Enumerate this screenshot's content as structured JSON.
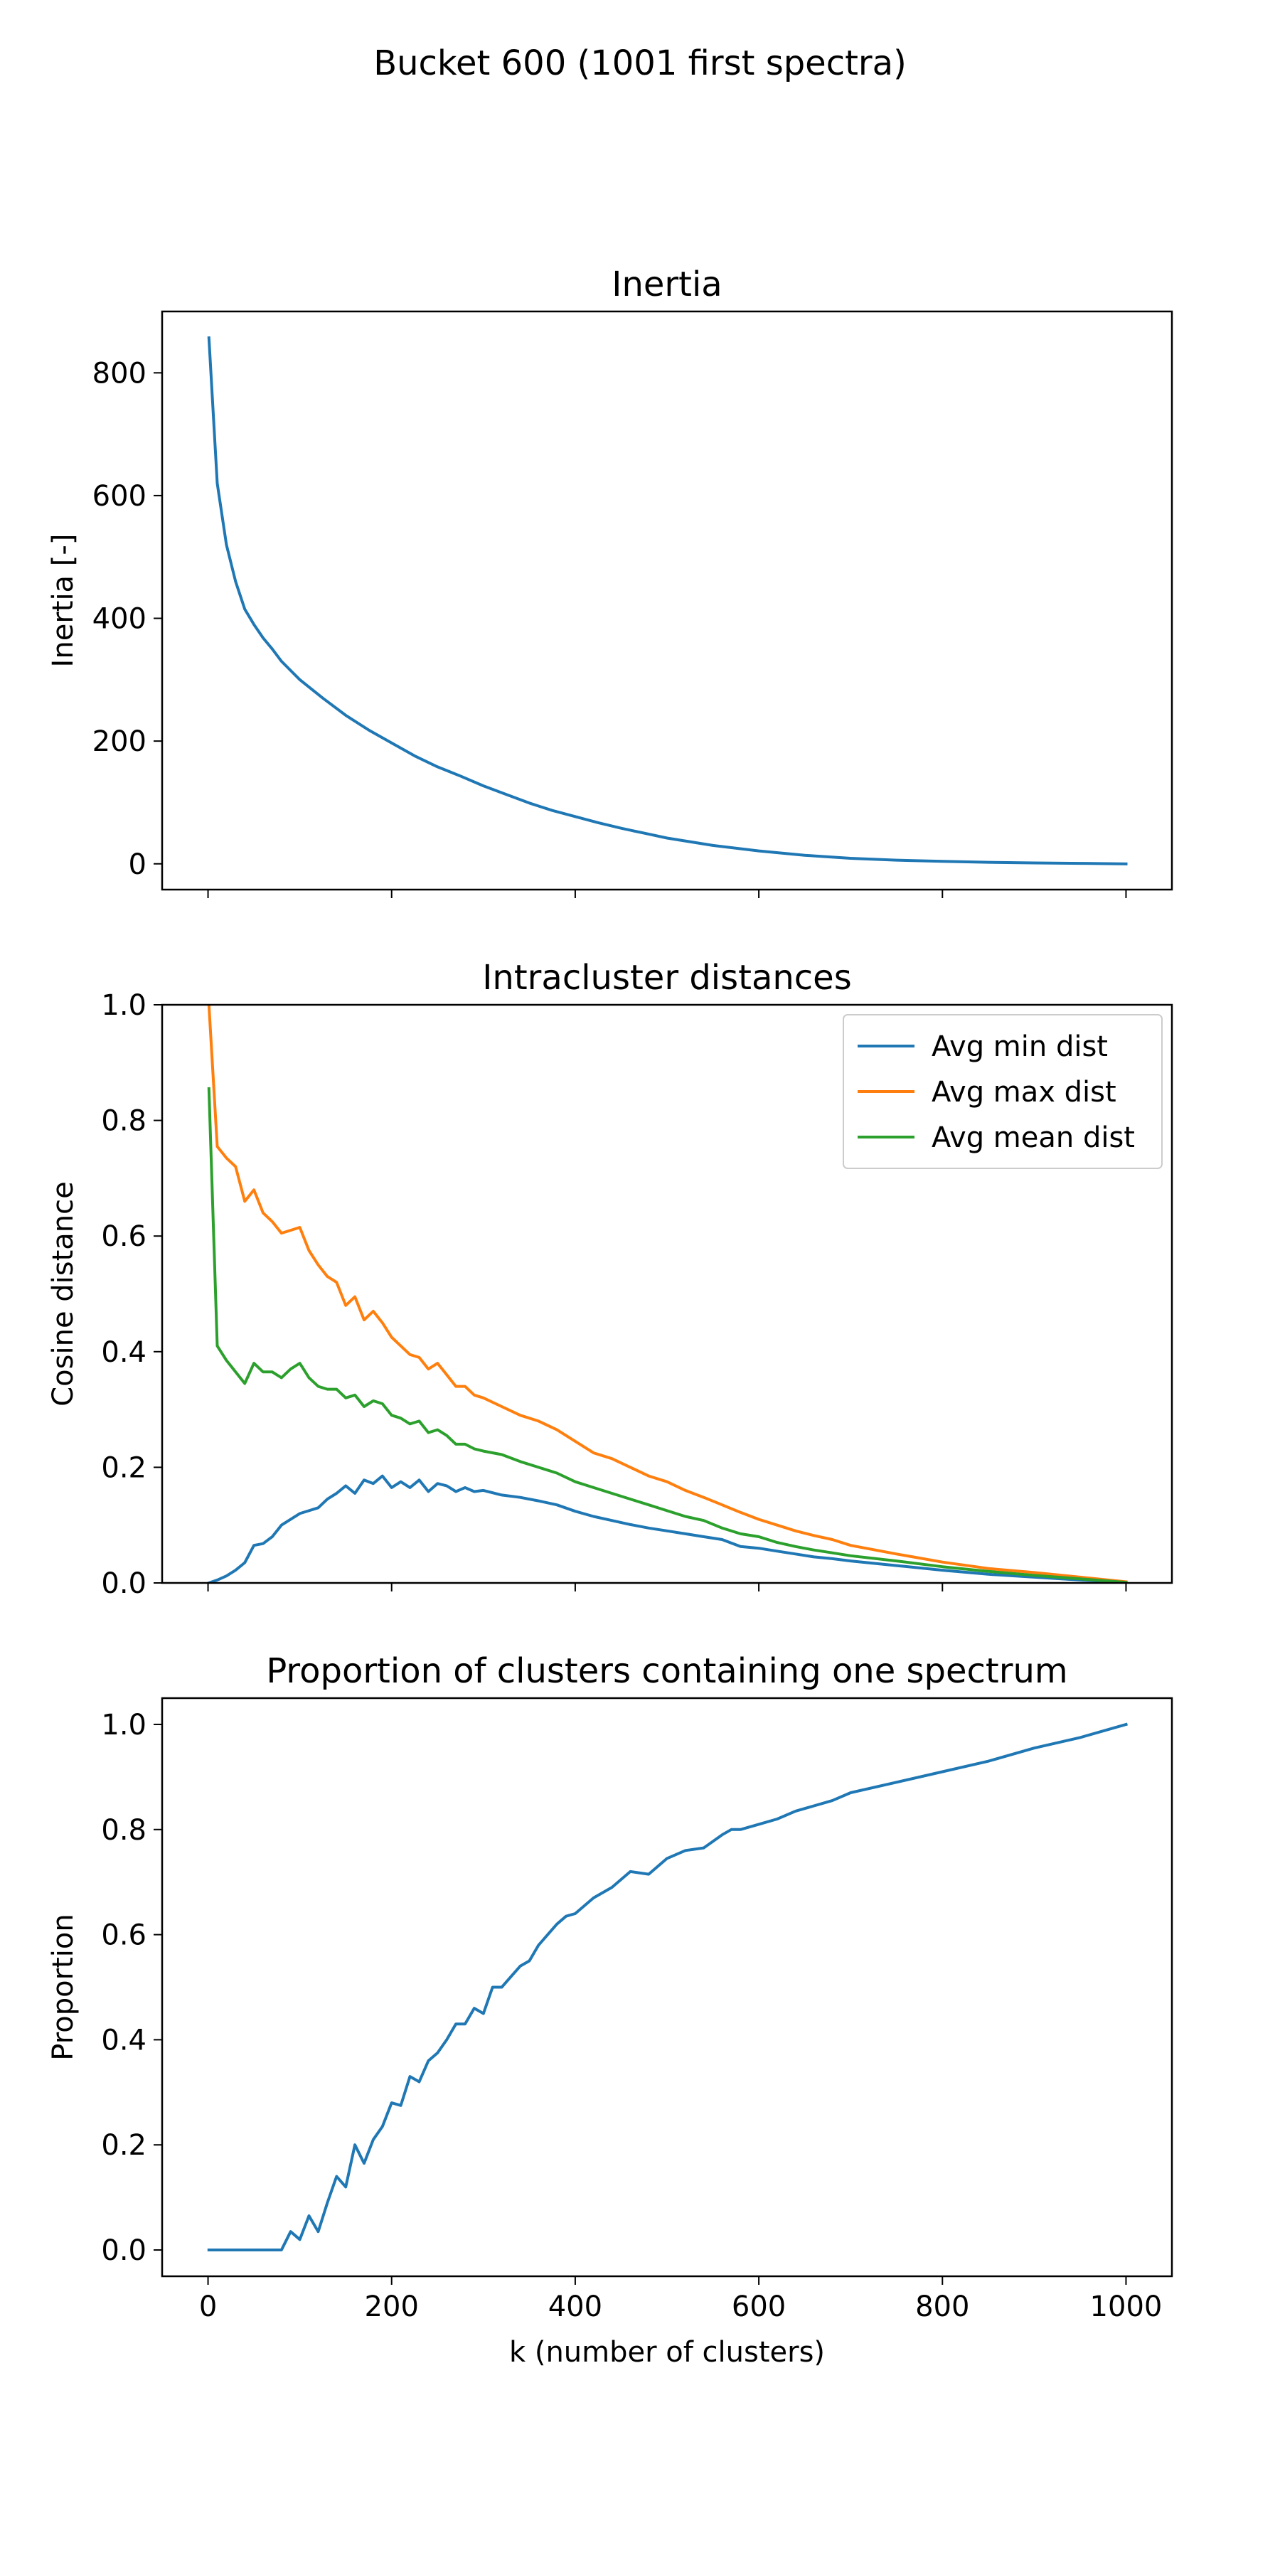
{
  "figure": {
    "suptitle": "Bucket 600 (1001 first spectra)"
  },
  "colors": {
    "series1": "#1f77b4",
    "series2": "#ff7f0e",
    "series3": "#2ca02c"
  },
  "chart_data": [
    {
      "type": "line",
      "title": "Inertia",
      "xlabel": "",
      "ylabel": "Inertia [-]",
      "xlim": [
        -50,
        1050
      ],
      "ylim": [
        -42,
        900
      ],
      "xticks": [
        0,
        200,
        400,
        600,
        800,
        1000
      ],
      "xtick_labels_visible": false,
      "yticks": [
        0,
        200,
        400,
        600,
        800
      ],
      "ytick_labels": [
        "0",
        "200",
        "400",
        "600",
        "800"
      ],
      "legend": false,
      "grid": false,
      "series": [
        {
          "color": "#1f77b4",
          "x": [
            1,
            10,
            20,
            30,
            40,
            50,
            60,
            70,
            80,
            90,
            100,
            125,
            150,
            175,
            200,
            225,
            250,
            275,
            300,
            325,
            350,
            375,
            400,
            425,
            450,
            475,
            500,
            550,
            600,
            650,
            700,
            750,
            800,
            850,
            900,
            950,
            1000
          ],
          "y": [
            857,
            620,
            520,
            460,
            415,
            390,
            368,
            350,
            330,
            315,
            300,
            270,
            242,
            218,
            197,
            176,
            158,
            143,
            127,
            113,
            99,
            87,
            77,
            67,
            58,
            50,
            42,
            30,
            21,
            14,
            9,
            6,
            4,
            2.5,
            1.5,
            0.8,
            0
          ]
        }
      ]
    },
    {
      "type": "line",
      "title": "Intracluster distances",
      "xlabel": "",
      "ylabel": "Cosine distance",
      "xlim": [
        -50,
        1050
      ],
      "ylim": [
        0,
        1.0
      ],
      "xticks": [
        0,
        200,
        400,
        600,
        800,
        1000
      ],
      "xtick_labels_visible": false,
      "yticks": [
        0.0,
        0.2,
        0.4,
        0.6,
        0.8,
        1.0
      ],
      "ytick_labels": [
        "0.0",
        "0.2",
        "0.4",
        "0.6",
        "0.8",
        "1.0"
      ],
      "legend": "top-right",
      "grid": false,
      "series": [
        {
          "name": "Avg min dist",
          "color": "#1f77b4",
          "x": [
            1,
            10,
            20,
            30,
            40,
            50,
            60,
            70,
            80,
            90,
            100,
            110,
            120,
            130,
            140,
            150,
            160,
            170,
            180,
            190,
            200,
            210,
            220,
            230,
            240,
            250,
            260,
            270,
            280,
            290,
            300,
            320,
            340,
            360,
            380,
            400,
            420,
            440,
            460,
            480,
            500,
            520,
            540,
            560,
            580,
            600,
            620,
            640,
            660,
            680,
            700,
            750,
            800,
            850,
            900,
            950,
            1000
          ],
          "y": [
            0,
            0.005,
            0.012,
            0.022,
            0.035,
            0.065,
            0.068,
            0.08,
            0.1,
            0.11,
            0.12,
            0.125,
            0.13,
            0.145,
            0.155,
            0.168,
            0.155,
            0.178,
            0.172,
            0.185,
            0.165,
            0.175,
            0.165,
            0.178,
            0.158,
            0.172,
            0.168,
            0.158,
            0.165,
            0.158,
            0.16,
            0.152,
            0.148,
            0.142,
            0.135,
            0.124,
            0.115,
            0.108,
            0.101,
            0.095,
            0.09,
            0.085,
            0.08,
            0.075,
            0.063,
            0.06,
            0.055,
            0.05,
            0.045,
            0.042,
            0.038,
            0.03,
            0.022,
            0.015,
            0.01,
            0.005,
            0.001
          ]
        },
        {
          "name": "Avg max dist",
          "color": "#ff7f0e",
          "x": [
            1,
            10,
            20,
            30,
            40,
            50,
            60,
            70,
            80,
            90,
            100,
            110,
            120,
            130,
            140,
            150,
            160,
            170,
            180,
            190,
            200,
            210,
            220,
            230,
            240,
            250,
            260,
            270,
            280,
            290,
            300,
            320,
            340,
            360,
            380,
            400,
            420,
            440,
            460,
            480,
            500,
            520,
            540,
            560,
            580,
            600,
            620,
            640,
            660,
            680,
            700,
            750,
            800,
            850,
            900,
            950,
            1000
          ],
          "y": [
            1.0,
            0.755,
            0.735,
            0.72,
            0.66,
            0.68,
            0.64,
            0.625,
            0.605,
            0.61,
            0.615,
            0.575,
            0.55,
            0.53,
            0.52,
            0.48,
            0.495,
            0.455,
            0.47,
            0.45,
            0.425,
            0.41,
            0.395,
            0.39,
            0.37,
            0.38,
            0.36,
            0.34,
            0.34,
            0.325,
            0.32,
            0.305,
            0.29,
            0.28,
            0.265,
            0.245,
            0.225,
            0.215,
            0.2,
            0.185,
            0.175,
            0.16,
            0.148,
            0.135,
            0.122,
            0.11,
            0.1,
            0.09,
            0.082,
            0.075,
            0.065,
            0.05,
            0.036,
            0.025,
            0.018,
            0.01,
            0.002
          ]
        },
        {
          "name": "Avg mean dist",
          "color": "#2ca02c",
          "x": [
            1,
            10,
            20,
            30,
            40,
            50,
            60,
            70,
            80,
            90,
            100,
            110,
            120,
            130,
            140,
            150,
            160,
            170,
            180,
            190,
            200,
            210,
            220,
            230,
            240,
            250,
            260,
            270,
            280,
            290,
            300,
            320,
            340,
            360,
            380,
            400,
            420,
            440,
            460,
            480,
            500,
            520,
            540,
            560,
            580,
            600,
            620,
            640,
            660,
            680,
            700,
            750,
            800,
            850,
            900,
            950,
            1000
          ],
          "y": [
            0.855,
            0.41,
            0.385,
            0.365,
            0.345,
            0.38,
            0.365,
            0.365,
            0.355,
            0.37,
            0.38,
            0.355,
            0.34,
            0.335,
            0.335,
            0.32,
            0.325,
            0.305,
            0.315,
            0.31,
            0.29,
            0.285,
            0.275,
            0.28,
            0.26,
            0.265,
            0.255,
            0.24,
            0.24,
            0.232,
            0.228,
            0.222,
            0.21,
            0.2,
            0.19,
            0.175,
            0.165,
            0.155,
            0.145,
            0.135,
            0.125,
            0.115,
            0.108,
            0.095,
            0.085,
            0.08,
            0.07,
            0.063,
            0.057,
            0.052,
            0.047,
            0.038,
            0.028,
            0.02,
            0.013,
            0.007,
            0.001
          ]
        }
      ]
    },
    {
      "type": "line",
      "title": "Proportion of clusters containing one spectrum",
      "xlabel": "k (number of clusters)",
      "ylabel": "Proportion",
      "xlim": [
        -50,
        1050
      ],
      "ylim": [
        -0.05,
        1.05
      ],
      "xticks": [
        0,
        200,
        400,
        600,
        800,
        1000
      ],
      "xtick_labels_visible": true,
      "xtick_labels": [
        "0",
        "200",
        "400",
        "600",
        "800",
        "1000"
      ],
      "yticks": [
        0.0,
        0.2,
        0.4,
        0.6,
        0.8,
        1.0
      ],
      "ytick_labels": [
        "0.0",
        "0.2",
        "0.4",
        "0.6",
        "0.8",
        "1.0"
      ],
      "legend": false,
      "grid": false,
      "series": [
        {
          "color": "#1f77b4",
          "x": [
            1,
            20,
            40,
            60,
            80,
            90,
            100,
            110,
            120,
            130,
            140,
            150,
            160,
            170,
            180,
            190,
            200,
            210,
            220,
            230,
            240,
            250,
            260,
            270,
            280,
            290,
            300,
            310,
            320,
            330,
            340,
            350,
            360,
            370,
            380,
            390,
            400,
            420,
            440,
            460,
            480,
            500,
            520,
            540,
            560,
            570,
            580,
            600,
            620,
            640,
            660,
            680,
            700,
            750,
            800,
            850,
            900,
            950,
            1000
          ],
          "y": [
            0,
            0,
            0,
            0,
            0,
            0.035,
            0.02,
            0.065,
            0.035,
            0.09,
            0.14,
            0.12,
            0.2,
            0.165,
            0.21,
            0.235,
            0.28,
            0.275,
            0.33,
            0.32,
            0.36,
            0.375,
            0.4,
            0.43,
            0.43,
            0.46,
            0.45,
            0.5,
            0.5,
            0.52,
            0.54,
            0.55,
            0.58,
            0.6,
            0.62,
            0.635,
            0.64,
            0.67,
            0.69,
            0.72,
            0.715,
            0.745,
            0.76,
            0.765,
            0.79,
            0.8,
            0.8,
            0.81,
            0.82,
            0.835,
            0.845,
            0.855,
            0.87,
            0.89,
            0.91,
            0.93,
            0.955,
            0.975,
            1.0
          ]
        }
      ]
    }
  ]
}
